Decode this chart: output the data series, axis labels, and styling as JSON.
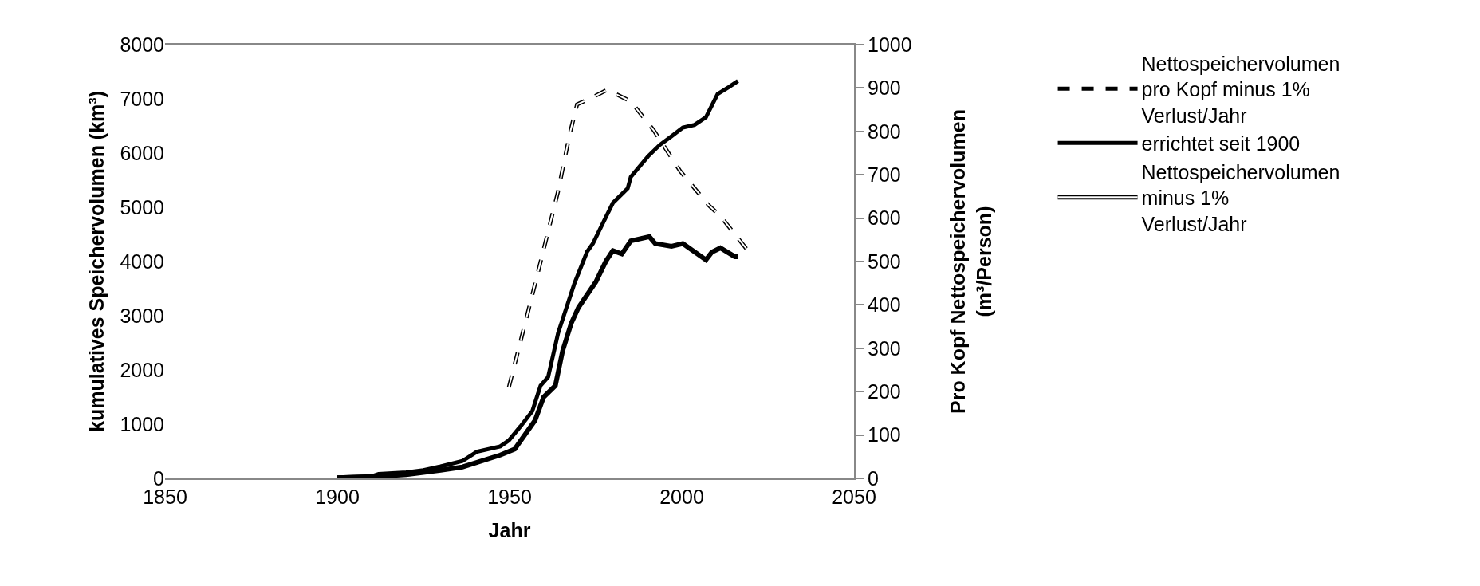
{
  "chart_data": {
    "type": "line",
    "xlabel": "Jahr",
    "ylabel": "kumulatives Speichervolumen (km³)",
    "y2label": "Pro Kopf Nettospeichervolumen (m³/Person)",
    "xlim": [
      1850,
      2050
    ],
    "xticks": [
      1850,
      1900,
      1950,
      2000,
      2050
    ],
    "ylim": [
      0,
      8000
    ],
    "yticks": [
      0,
      1000,
      2000,
      3000,
      4000,
      5000,
      6000,
      7000,
      8000
    ],
    "y2lim": [
      0,
      1000
    ],
    "y2ticks": [
      0,
      100,
      200,
      300,
      400,
      500,
      600,
      700,
      800,
      900,
      1000
    ],
    "grid": false,
    "legend": "right",
    "marker": "none",
    "series": [
      {
        "name": "Nettospeichervolumen pro Kopf minus 1% Verlust/Jahr",
        "color": "#000000",
        "axis": "y2",
        "line_style": "dashed",
        "x": [
          1949.8,
          1957.4,
          1964.1,
          1967.5,
          1969.6,
          1974.2,
          1978.4,
          1985.2,
          1991.9,
          1999.5,
          2007.9,
          2011.2,
          2019.2
        ],
        "values": [
          210,
          448,
          662,
          795,
          862,
          879,
          896,
          869,
          802,
          709,
          629,
          605,
          525
        ]
      },
      {
        "name": "errichtet seit 1900",
        "color": "#000000",
        "line_style": "solid",
        "x": [
          1900,
          1905,
          1910,
          1912,
          1920,
          1925,
          1930,
          1936.3,
          1940.5,
          1947.3,
          1949.8,
          1953.2,
          1956.6,
          1959.0,
          1961.2,
          1964.1,
          1967.1,
          1968.8,
          1972.5,
          1974.2,
          1977.5,
          1980.0,
          1984.3,
          1985.2,
          1990.2,
          1993.6,
          1997.0,
          2000.3,
          2003.7,
          2007.0,
          2010.4,
          2013.7,
          2016.3
        ],
        "values": [
          20,
          30,
          40,
          80,
          110,
          150,
          220,
          320,
          490,
          590,
          700,
          960,
          1240,
          1710,
          1870,
          2680,
          3260,
          3590,
          4180,
          4330,
          4760,
          5080,
          5350,
          5560,
          5940,
          6150,
          6310,
          6470,
          6520,
          6660,
          7090,
          7220,
          7330
        ]
      },
      {
        "name": "Nettospeichervolumen minus 1% Verlust/Jahr",
        "color": "#000000",
        "line_style": "solid",
        "x": [
          1900,
          1910,
          1920,
          1930,
          1936.3,
          1947.3,
          1951.5,
          1957.4,
          1959.9,
          1963.3,
          1965.4,
          1967.9,
          1970.0,
          1975.1,
          1978.0,
          1980.0,
          1982.6,
          1985.2,
          1990.6,
          1992.3,
          1997.0,
          2000.3,
          2007.0,
          2008.7,
          2011.2,
          2015.4,
          2016.3
        ],
        "values": [
          10,
          30,
          70,
          150,
          210,
          430,
          540,
          1070,
          1500,
          1710,
          2350,
          2860,
          3150,
          3630,
          4010,
          4200,
          4140,
          4380,
          4460,
          4330,
          4280,
          4330,
          4030,
          4170,
          4250,
          4090,
          4090
        ]
      }
    ]
  }
}
